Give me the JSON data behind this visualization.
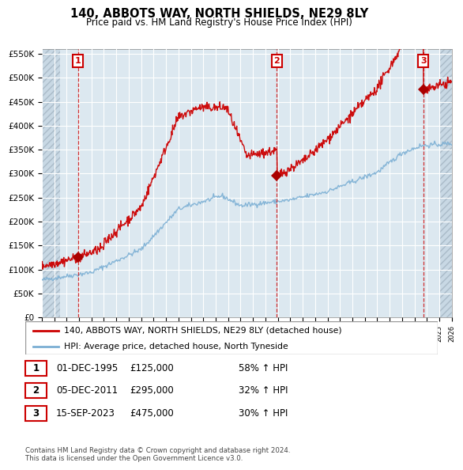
{
  "title": "140, ABBOTS WAY, NORTH SHIELDS, NE29 8LY",
  "subtitle": "Price paid vs. HM Land Registry's House Price Index (HPI)",
  "xlim_start": 1993.0,
  "xlim_end": 2026.0,
  "ylim": [
    0,
    560000
  ],
  "yticks": [
    0,
    50000,
    100000,
    150000,
    200000,
    250000,
    300000,
    350000,
    400000,
    450000,
    500000,
    550000
  ],
  "ytick_labels": [
    "£0",
    "£50K",
    "£100K",
    "£150K",
    "£200K",
    "£250K",
    "£300K",
    "£350K",
    "£400K",
    "£450K",
    "£500K",
    "£550K"
  ],
  "transaction_dates": [
    1995.917,
    2011.917,
    2023.708
  ],
  "transaction_prices": [
    125000,
    295000,
    475000
  ],
  "transaction_labels": [
    "1",
    "2",
    "3"
  ],
  "hpi_line_color": "#7bafd4",
  "price_line_color": "#cc0000",
  "bg_color": "#dce8f0",
  "hatch_bg_color": "#c8d8e4",
  "grid_color": "#ffffff",
  "legend_line1": "140, ABBOTS WAY, NORTH SHIELDS, NE29 8LY (detached house)",
  "legend_line2": "HPI: Average price, detached house, North Tyneside",
  "table_rows": [
    [
      "1",
      "01-DEC-1995",
      "£125,000",
      "58% ↑ HPI"
    ],
    [
      "2",
      "05-DEC-2011",
      "£295,000",
      "32% ↑ HPI"
    ],
    [
      "3",
      "15-SEP-2023",
      "£475,000",
      "30% ↑ HPI"
    ]
  ],
  "footnote": "Contains HM Land Registry data © Crown copyright and database right 2024.\nThis data is licensed under the Open Government Licence v3.0."
}
